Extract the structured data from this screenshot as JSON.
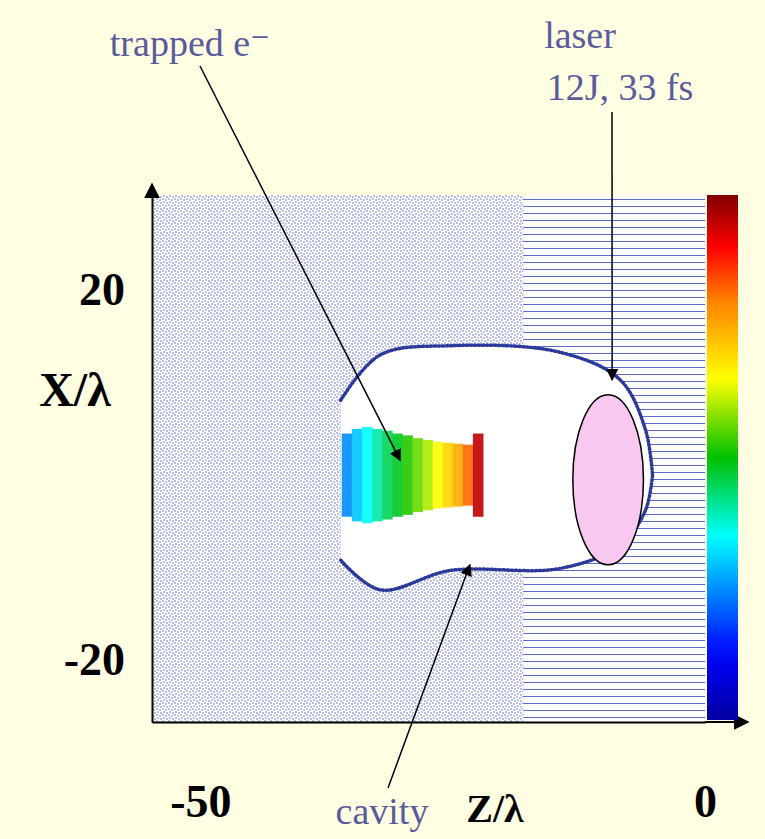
{
  "chart_data": {
    "type": "scatter",
    "xlabel": "Z/λ",
    "ylabel": "X/λ",
    "xlim": [
      -54.8,
      0
    ],
    "ylim": [
      -26.7,
      30.3
    ],
    "xticks": [
      -50,
      0
    ],
    "yticks": [
      -20,
      20
    ],
    "grid": false,
    "series": [
      {
        "type": "line",
        "line_style": "dotted",
        "color": "#2b3a9a",
        "x": [
          -36.1,
          -32.2,
          -25.2,
          -14.4,
          -8.4,
          -5.9,
          -5.2
        ],
        "values": [
          8.1,
          13.0,
          14.0,
          13.3,
          10.3,
          4.9,
          0
        ]
      },
      {
        "type": "line",
        "line_style": "dotted",
        "color": "#2b3a9a",
        "x": [
          -36.1,
          -32.2,
          -25.2,
          -14.4,
          -8.4,
          -5.9,
          -5.2
        ],
        "values": [
          -9.2,
          -12.4,
          -10.3,
          -10.1,
          -7.6,
          -3.8,
          0
        ]
      }
    ],
    "bunch": {
      "z": [
        -35.5,
        -34.5,
        -33.5,
        -32.5,
        -31.5,
        -30.5,
        -29.5,
        -28.5,
        -27.5,
        -26.5,
        -25.5,
        -24.5,
        -23.5,
        -22.5
      ],
      "half_width": [
        4.5,
        5.0,
        5.2,
        5.0,
        4.8,
        4.5,
        4.3,
        4.0,
        3.8,
        3.6,
        3.5,
        3.4,
        3.3,
        4.5
      ],
      "energy": [
        0.25,
        0.3,
        0.35,
        0.4,
        0.45,
        0.48,
        0.52,
        0.56,
        0.6,
        0.65,
        0.7,
        0.75,
        0.82,
        0.95
      ]
    },
    "color_range": [
      0,
      1
    ],
    "laser": {
      "z": -9.6,
      "x": -0.5,
      "z_radius": 3.5,
      "x_radius": 9.2,
      "color": "#f8c8f0"
    },
    "annotations": [
      {
        "text": "trapped e⁻",
        "target": [
          -30.2,
          1.6
        ]
      },
      {
        "text": [
          "laser",
          "12J, 33 fs"
        ],
        "target": [
          -9.2,
          10.3
        ]
      },
      {
        "text": "cavity",
        "target": [
          -23.3,
          -9.7
        ]
      }
    ]
  }
}
